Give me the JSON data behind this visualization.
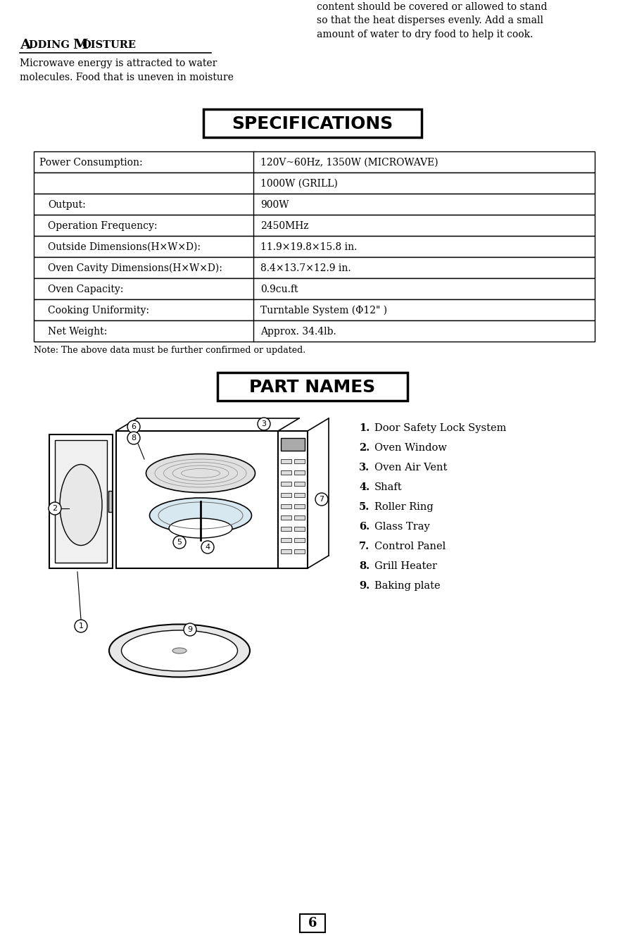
{
  "bg_color": "#ffffff",
  "page_number": "6",
  "section1_text_left": "Microwave energy is attracted to water\nmolecules. Food that is uneven in moisture",
  "section1_text_right": "content should be covered or allowed to stand\nso that the heat disperses evenly. Add a small\namount of water to dry food to help it cook.",
  "spec_title": "SPECIFICATIONS",
  "spec_rows": [
    [
      "Power Consumption:",
      "120V~60Hz, 1350W (MICROWAVE)"
    ],
    [
      "",
      "1000W (GRILL)"
    ],
    [
      "Output:",
      "900W"
    ],
    [
      "Operation Frequency:",
      "2450MHz"
    ],
    [
      "Outside Dimensions(H×W×D):",
      "11.9×19.8×15.8 in."
    ],
    [
      "Oven Cavity Dimensions(H×W×D):",
      "8.4×13.7×12.9 in."
    ],
    [
      "Oven Capacity:",
      "0.9cu.ft"
    ],
    [
      "Cooking Uniformity:",
      "Turntable System (Φ12\" )"
    ],
    [
      "Net Weight:",
      "Approx. 34.4lb."
    ]
  ],
  "spec_note": "Note: The above data must be further confirmed or updated.",
  "part_title": "PART NAMES",
  "part_items": [
    "Door Safety Lock System",
    "Oven Window",
    "Oven Air Vent",
    "Shaft",
    "Roller Ring",
    "Glass Tray",
    "Control Panel",
    "Grill Heater",
    "Baking plate"
  ]
}
